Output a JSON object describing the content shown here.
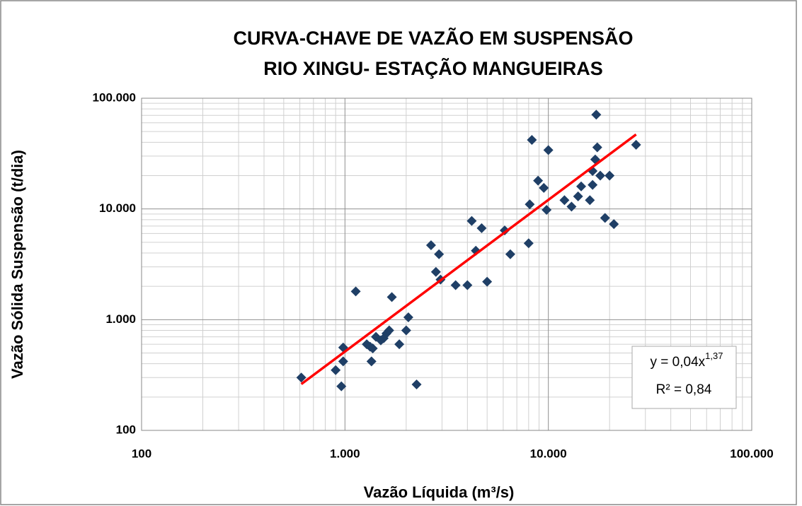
{
  "chart_data": {
    "type": "scatter",
    "title": [
      "CURVA-CHAVE DE VAZÃO EM SUSPENSÃO",
      "RIO XINGU- ESTAÇÃO MANGUEIRAS"
    ],
    "x_label": "Vazão Líquida (m³/s)",
    "y_label": "Vazão Sólida Suspensão (t/dia)",
    "log_x": true,
    "log_y": true,
    "grid": true,
    "xlim": [
      100,
      100000
    ],
    "ylim": [
      100,
      100000
    ],
    "xticks": [
      100,
      {
        "value": 1000,
        "label": "1.000"
      },
      {
        "value": 10000,
        "label": "10.000"
      },
      {
        "value": 100000,
        "label": "100.000"
      }
    ],
    "yticks": [
      100,
      {
        "value": 1000,
        "label": "1.000"
      },
      {
        "value": 10000,
        "label": "10.000"
      },
      {
        "value": 100000,
        "label": "100.000"
      }
    ],
    "color": "#1f3f66",
    "x": [
      610,
      900,
      960,
      980,
      980,
      1130,
      1280,
      1330,
      1350,
      1370,
      1420,
      1500,
      1550,
      1600,
      1650,
      1700,
      1850,
      2000,
      2050,
      2250,
      2650,
      2800,
      2900,
      2950,
      3500,
      4000,
      4200,
      4400,
      4700,
      5000,
      6100,
      6500,
      8000,
      8100,
      8300,
      8900,
      9500,
      9800,
      10000,
      12000,
      13000,
      14000,
      14500,
      16000,
      16500,
      16500,
      17000,
      17200,
      17400,
      18000,
      19000,
      20000,
      21000,
      27000
    ],
    "values": [
      300,
      350,
      250,
      420,
      560,
      1800,
      600,
      570,
      420,
      550,
      700,
      650,
      680,
      750,
      800,
      1600,
      600,
      800,
      1050,
      260,
      4700,
      2700,
      3900,
      2300,
      2050,
      2050,
      7800,
      4200,
      6700,
      2200,
      6400,
      3900,
      4900,
      11000,
      42000,
      18000,
      15500,
      9800,
      34000,
      12000,
      10500,
      13000,
      16000,
      12000,
      22000,
      16500,
      28000,
      71000,
      36000,
      20000,
      8300,
      20000,
      7300,
      38000
    ],
    "trendline": {
      "color": "#ff0000",
      "coefficient": 0.04,
      "exponent": 1.37,
      "r2": 0.84,
      "equation_label": "y = 0,04x",
      "exponent_label": "1,37",
      "r2_label": "R² = 0,84"
    }
  }
}
